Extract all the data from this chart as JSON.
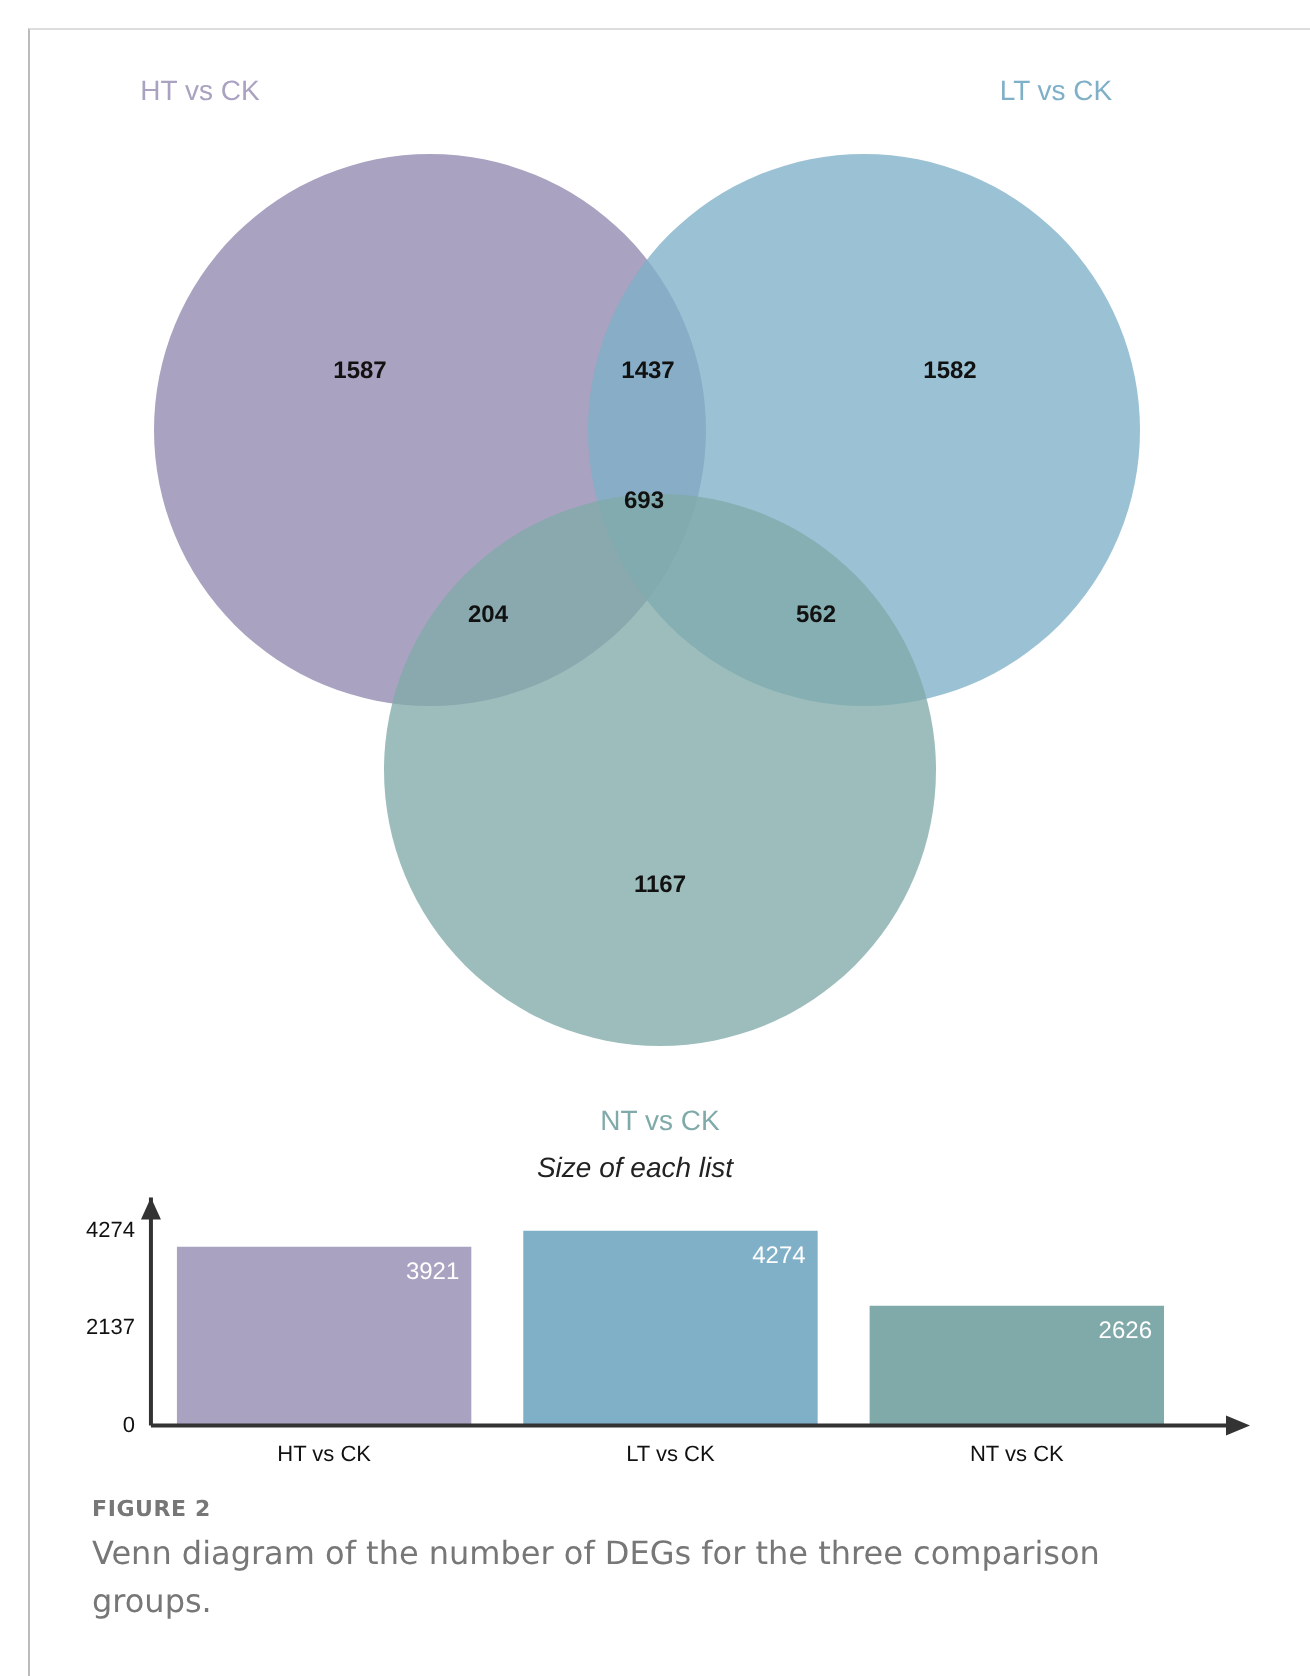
{
  "chart_data": [
    {
      "type": "other",
      "series": [
        {
          "name": "HT vs CK",
          "color": "#a9a2c0"
        },
        {
          "name": "LT vs CK",
          "color": "#7fb0c8"
        },
        {
          "name": "NT vs CK",
          "color": "#80aaa9"
        }
      ],
      "annotations": [
        "1587",
        "1582",
        "1167",
        "1437",
        "204",
        "562",
        "693"
      ]
    },
    {
      "type": "bar",
      "title": "Size of each list",
      "categories": [
        "HT vs CK",
        "LT vs CK",
        "NT vs CK"
      ],
      "values": [
        3921,
        4274,
        2626
      ],
      "colors": [
        "#a9a2c0",
        "#7fb0c8",
        "#80aaa9"
      ],
      "ylim": [
        0,
        5000
      ],
      "yticks": [
        0,
        2137,
        4274
      ],
      "grid": false,
      "data_labels": true,
      "annotations": [
        "FIGURE 2",
        "Venn diagram of the number of DEGs for the three comparison groups."
      ]
    }
  ]
}
